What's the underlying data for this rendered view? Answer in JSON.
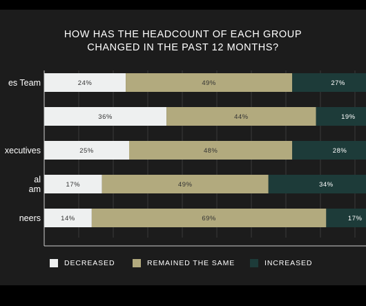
{
  "chart_data": {
    "type": "bar",
    "orientation": "horizontal",
    "stacked": true,
    "normalized_percent": true,
    "title": "HOW HAS THE HEADCOUNT OF EACH GROUP\nCHANGED IN THE PAST 12 MONTHS?",
    "categories": [
      [
        "es Team"
      ],
      [
        ""
      ],
      [
        "xecutives"
      ],
      [
        "al",
        "am"
      ],
      [
        "neers"
      ]
    ],
    "series": [
      {
        "name": "DECREASED",
        "color": "#eef0f0",
        "label_color": "#333333",
        "values": [
          24,
          36,
          25,
          17,
          14
        ]
      },
      {
        "name": "REMAINED THE SAME",
        "color": "#b2aa7e",
        "label_color": "#333333",
        "values": [
          49,
          44,
          48,
          49,
          69
        ]
      },
      {
        "name": "INCREASED",
        "color": "#1d3b39",
        "label_color": "#ffffff",
        "values": [
          27,
          19,
          28,
          34,
          17
        ]
      }
    ],
    "value_suffix": "%",
    "xlim": [
      0,
      100
    ],
    "grid": true,
    "legend_position": "bottom"
  }
}
